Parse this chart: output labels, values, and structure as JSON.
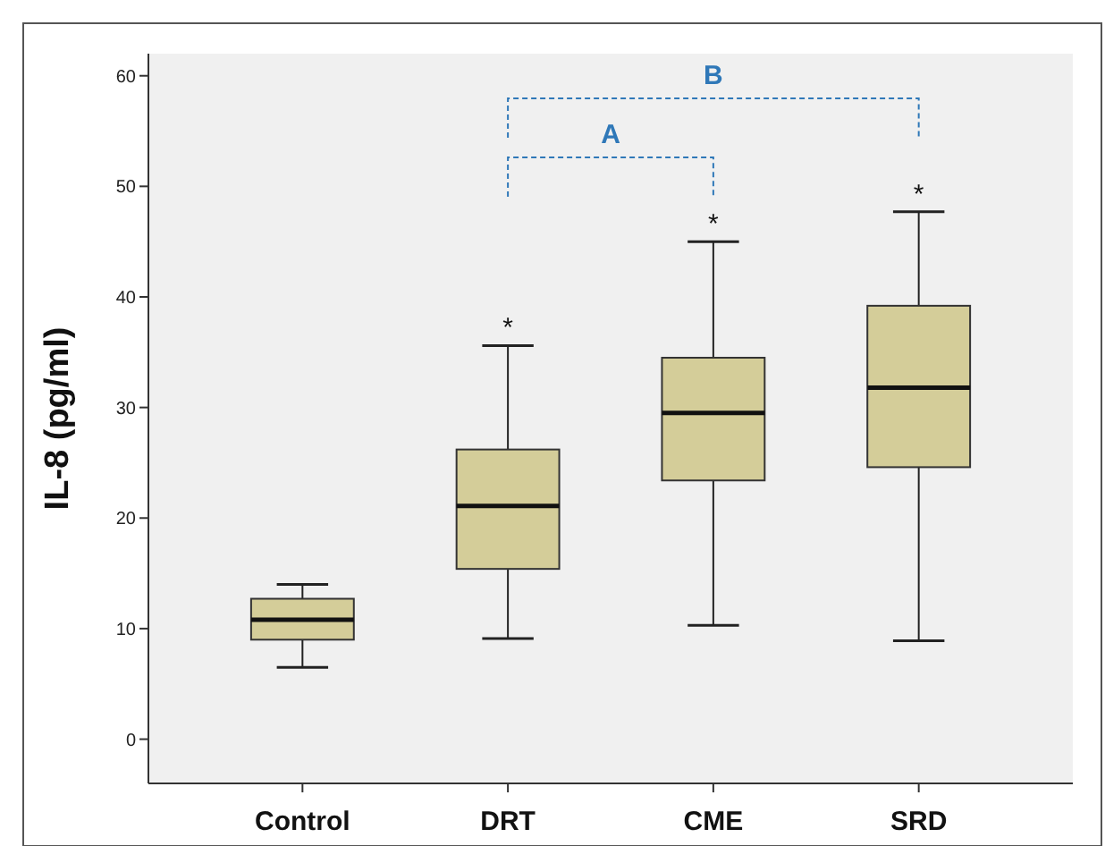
{
  "chart_data": {
    "type": "box",
    "ylabel": "IL-8 (pg/ml)",
    "categories": [
      "Control",
      "DRT",
      "CME",
      "SRD"
    ],
    "color": "#d4cd99",
    "boxes": [
      {
        "low": 6.5,
        "q1": 9,
        "median": 10.8,
        "q3": 12.7,
        "high": 14
      },
      {
        "low": 9.1,
        "q1": 15.4,
        "median": 21.1,
        "q3": 26.2,
        "high": 35.6
      },
      {
        "low": 10.3,
        "q1": 23.4,
        "median": 29.5,
        "q3": 34.5,
        "high": 45
      },
      {
        "low": 8.9,
        "q1": 24.6,
        "median": 31.8,
        "q3": 39.2,
        "high": 47.7
      }
    ],
    "ylim": [
      -4,
      62
    ],
    "yticks": [
      0,
      10,
      20,
      30,
      40,
      50,
      60
    ],
    "grid": false,
    "annotations": [
      "*",
      "*",
      "*",
      "A",
      "B"
    ]
  }
}
